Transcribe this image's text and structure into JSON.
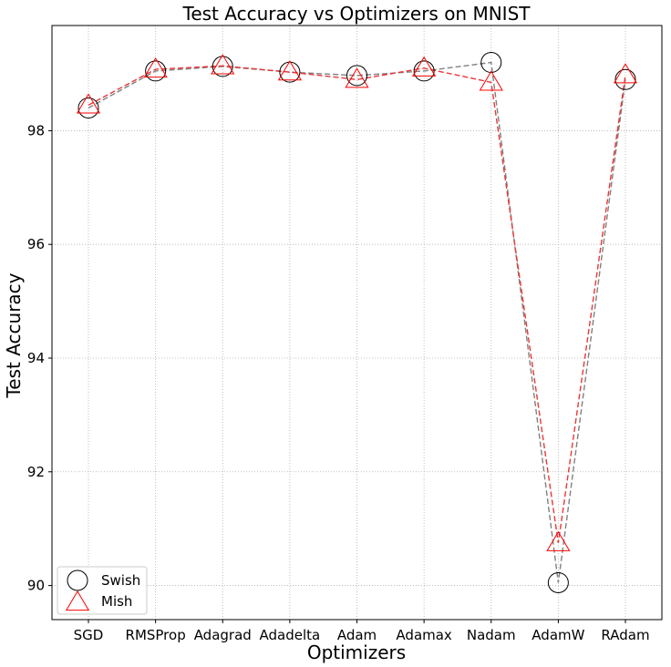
{
  "chart_data": {
    "type": "line",
    "title": "Test Accuracy vs Optimizers on MNIST",
    "xlabel": "Optimizers",
    "ylabel": "Test Accuracy",
    "categories": [
      "SGD",
      "RMSProp",
      "Adagrad",
      "Adadelta",
      "Adam",
      "Adamax",
      "Nadam",
      "AdamW",
      "RAdam"
    ],
    "ylim": [
      89.4,
      99.85
    ],
    "yticks": [
      90,
      92,
      94,
      96,
      98
    ],
    "grid": true,
    "legend_position": "bottom-left",
    "series": [
      {
        "name": "Swish",
        "marker": "circle",
        "line_color": "#808080",
        "marker_color": "#000000",
        "values": [
          98.4,
          99.05,
          99.13,
          99.03,
          98.97,
          99.05,
          99.2,
          90.05,
          98.9
        ]
      },
      {
        "name": "Mish",
        "marker": "triangle",
        "line_color": "#e8373a",
        "marker_color": "#ff0000",
        "values": [
          98.45,
          99.08,
          99.14,
          99.03,
          98.9,
          99.1,
          98.85,
          90.75,
          98.98
        ]
      }
    ]
  }
}
